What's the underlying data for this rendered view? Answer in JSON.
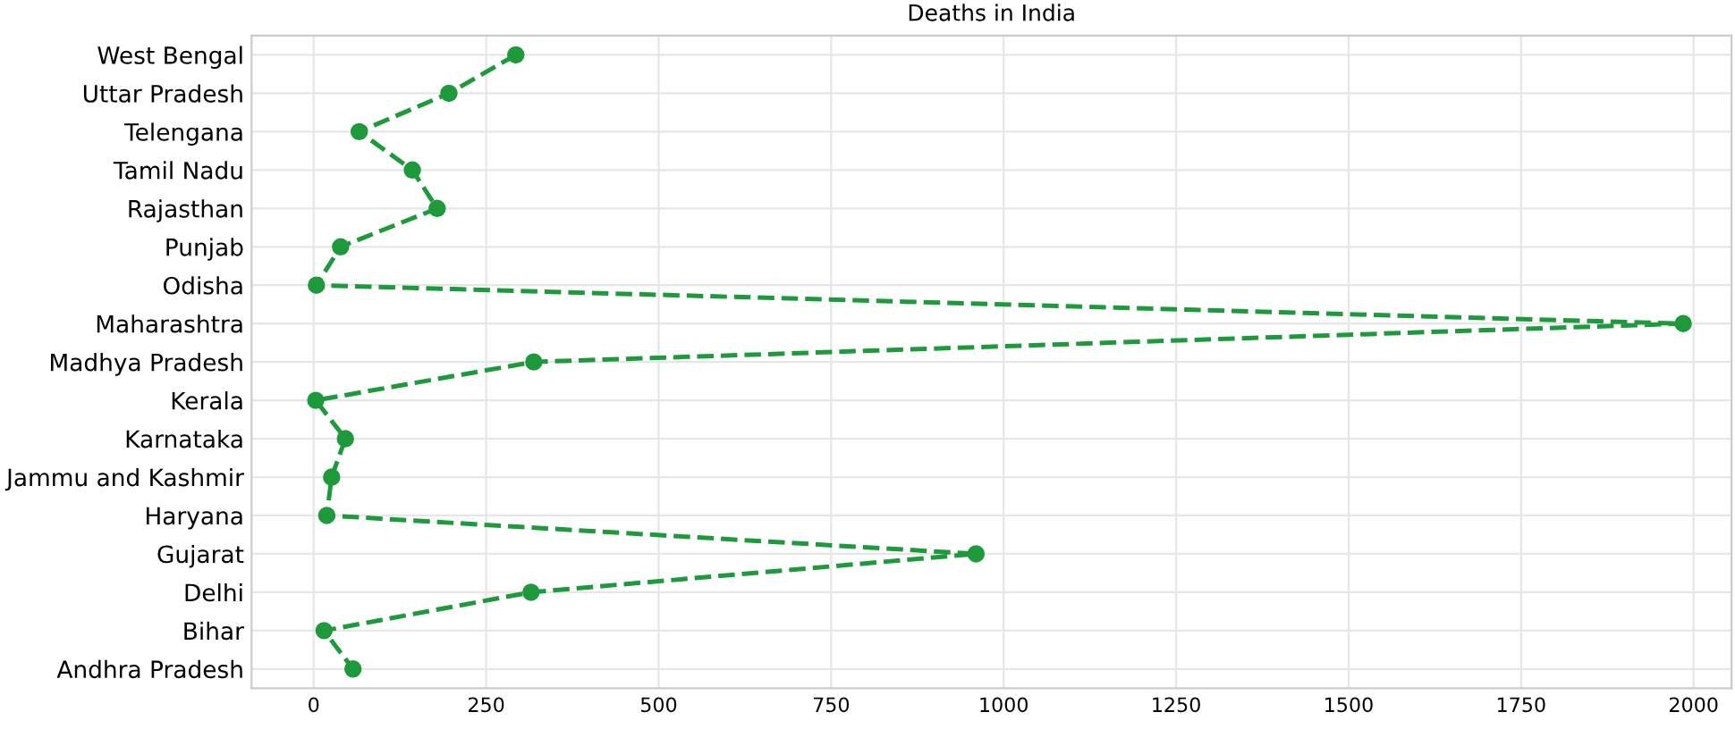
{
  "chart_data": {
    "type": "line",
    "title": "Deaths in India",
    "orientation": "horizontal",
    "categories": [
      "West Bengal",
      "Uttar Pradesh",
      "Telengana",
      "Tamil Nadu",
      "Rajasthan",
      "Punjab",
      "Odisha",
      "Maharashtra",
      "Madhya Pradesh",
      "Kerala",
      "Karnataka",
      "Jammu and Kashmir",
      "Haryana",
      "Gujarat",
      "Delhi",
      "Bihar",
      "Andhra Pradesh"
    ],
    "series": [
      {
        "color": "#1e9a3c",
        "values": [
          293,
          196,
          66,
          143,
          179,
          39,
          4,
          1985,
          319,
          3,
          46,
          26,
          19,
          960,
          315,
          15,
          57
        ]
      }
    ],
    "xlim": [
      -90,
      2055
    ],
    "xticks": [
      0,
      250,
      500,
      750,
      1000,
      1250,
      1500,
      1750,
      2000
    ],
    "grid": true,
    "marker": "circle",
    "line_style": "dashed"
  }
}
